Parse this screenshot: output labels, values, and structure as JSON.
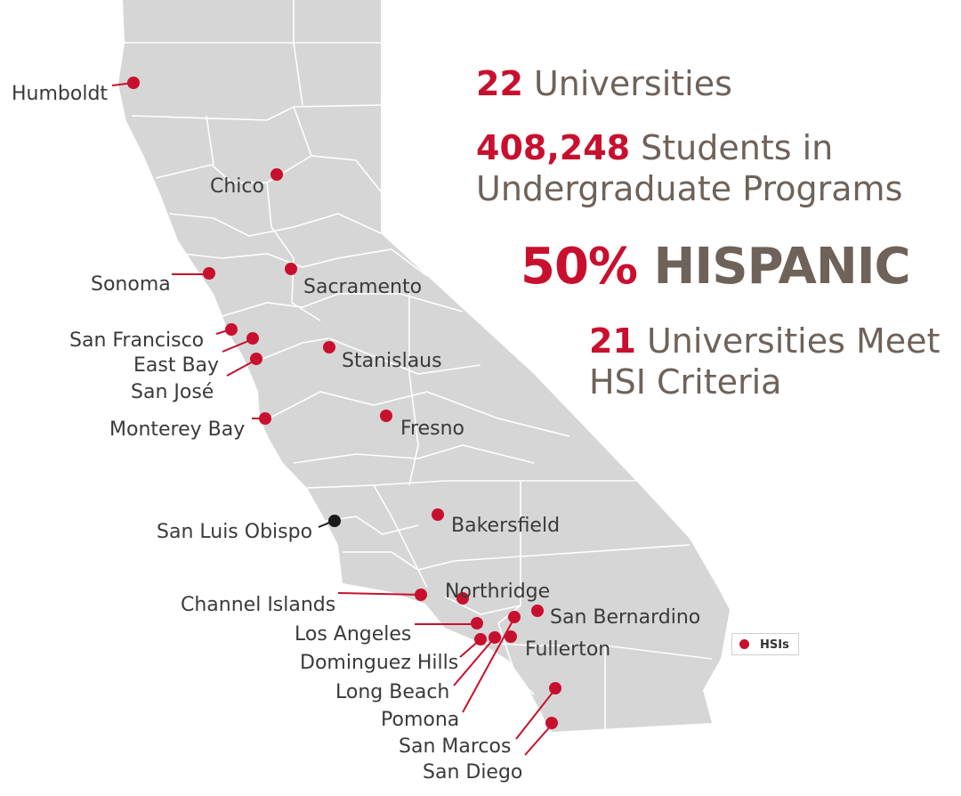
{
  "stats": {
    "universities": {
      "num": "22",
      "text": " Universities"
    },
    "students": {
      "num": "408,248",
      "text": " Students in",
      "line2": "Undergraduate Programs"
    },
    "hispanic": {
      "pct": "50%",
      "word": " HISPANIC"
    },
    "hsi": {
      "num": "21",
      "text": " Universities Meet",
      "line2": "HSI Criteria"
    }
  },
  "legend": {
    "label": "HSIs",
    "color": "#c8102e"
  },
  "colors": {
    "hsi": "#c8102e",
    "non_hsi": "#1a1a1a",
    "land": "#d6d6d6",
    "county_lines": "#ffffff"
  },
  "campuses": {
    "humboldt": {
      "label": "Humboldt",
      "hsi": true
    },
    "chico": {
      "label": "Chico",
      "hsi": true
    },
    "sonoma": {
      "label": "Sonoma",
      "hsi": true
    },
    "sacramento": {
      "label": "Sacramento",
      "hsi": true
    },
    "san_francisco": {
      "label": "San Francisco",
      "hsi": true
    },
    "east_bay": {
      "label": "East Bay",
      "hsi": true
    },
    "san_jose": {
      "label": "San José",
      "hsi": true
    },
    "stanislaus": {
      "label": "Stanislaus",
      "hsi": true
    },
    "monterey_bay": {
      "label": "Monterey Bay",
      "hsi": true
    },
    "fresno": {
      "label": "Fresno",
      "hsi": true
    },
    "san_luis_obispo": {
      "label": "San Luis Obispo",
      "hsi": false
    },
    "bakersfield": {
      "label": "Bakersfield",
      "hsi": true
    },
    "channel_islands": {
      "label": "Channel Islands",
      "hsi": true
    },
    "northridge": {
      "label": "Northridge",
      "hsi": true
    },
    "san_bernardino": {
      "label": "San Bernardino",
      "hsi": true
    },
    "los_angeles": {
      "label": "Los Angeles",
      "hsi": true
    },
    "fullerton": {
      "label": "Fullerton",
      "hsi": true
    },
    "dominguez_hills": {
      "label": "Dominguez Hills",
      "hsi": true
    },
    "long_beach": {
      "label": "Long Beach",
      "hsi": true
    },
    "pomona": {
      "label": "Pomona",
      "hsi": true
    },
    "san_marcos": {
      "label": "San Marcos",
      "hsi": true
    },
    "san_diego": {
      "label": "San Diego",
      "hsi": true
    }
  }
}
